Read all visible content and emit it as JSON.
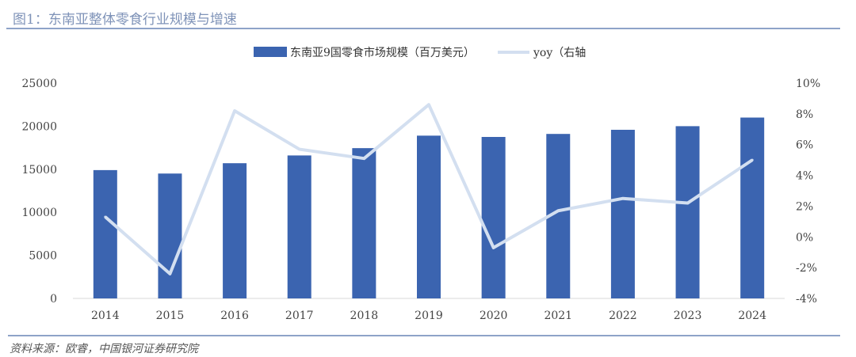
{
  "title": "图1：东南亚整体零食行业规模与增速",
  "source": "资料来源：欧睿，中国银河证券研究院",
  "chart_data": {
    "type": "bar+line",
    "categories": [
      "2014",
      "2015",
      "2016",
      "2017",
      "2018",
      "2019",
      "2020",
      "2021",
      "2022",
      "2023",
      "2024"
    ],
    "series": [
      {
        "name": "东南亚9国零食市场规模（百万美元）",
        "type": "bar",
        "axis": "left",
        "color": "#3b64b0",
        "values": [
          14900,
          14500,
          15700,
          16600,
          17450,
          18900,
          18750,
          19100,
          19580,
          20000,
          21000
        ]
      },
      {
        "name": "yoy（右轴",
        "type": "line",
        "axis": "right",
        "color": "#d3dff0",
        "values": [
          1.3,
          -2.4,
          8.2,
          5.7,
          5.1,
          8.6,
          -0.7,
          1.7,
          2.5,
          2.2,
          5.0
        ]
      }
    ],
    "left_axis": {
      "range": [
        0,
        25000
      ],
      "ticks": [
        "0",
        "5000",
        "10000",
        "15000",
        "20000",
        "25000"
      ]
    },
    "right_axis": {
      "range": [
        -4,
        10
      ],
      "ticks": [
        "-4%",
        "-2%",
        "0%",
        "2%",
        "4%",
        "6%",
        "8%",
        "10%"
      ]
    },
    "grid": false,
    "legend": "top"
  }
}
